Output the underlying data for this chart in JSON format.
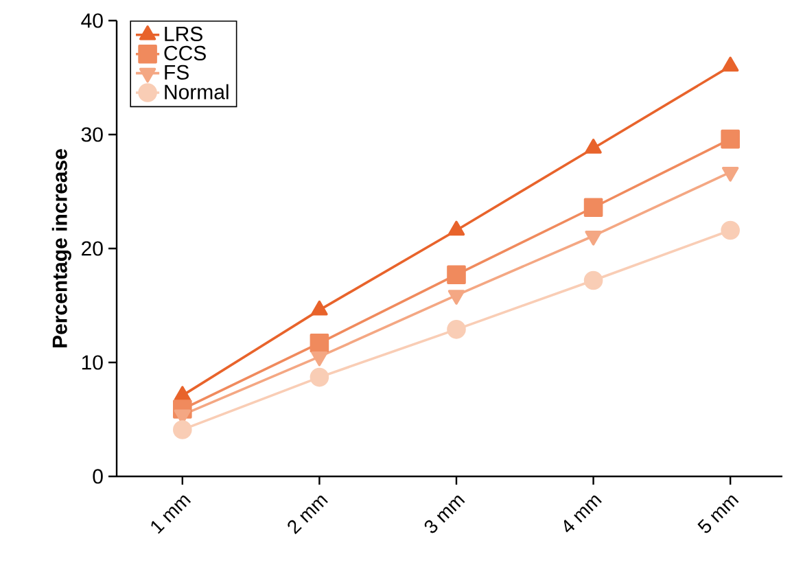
{
  "chart_data": {
    "type": "line",
    "ylabel": "Percentage increase",
    "categories": [
      "1 mm",
      "2 mm",
      "3 mm",
      "4 mm",
      "5 mm"
    ],
    "series": [
      {
        "name": "LRS",
        "color": "#e8632b",
        "marker": "triangle",
        "values": [
          7.1,
          14.6,
          21.6,
          28.8,
          36.0
        ]
      },
      {
        "name": "CCS",
        "color": "#f08a5d",
        "marker": "square",
        "values": [
          5.9,
          11.7,
          17.7,
          23.6,
          29.6
        ]
      },
      {
        "name": "FS",
        "color": "#f4a783",
        "marker": "triangle-down",
        "values": [
          5.4,
          10.5,
          15.9,
          21.1,
          26.7
        ]
      },
      {
        "name": "Normal",
        "color": "#f9cdb5",
        "marker": "circle",
        "values": [
          4.1,
          8.7,
          12.9,
          17.2,
          21.6
        ]
      }
    ],
    "ylim": [
      0,
      40
    ],
    "yticks": [
      0,
      10,
      20,
      30,
      40
    ],
    "grid": false,
    "legend": "top left",
    "line_style": "solid"
  }
}
